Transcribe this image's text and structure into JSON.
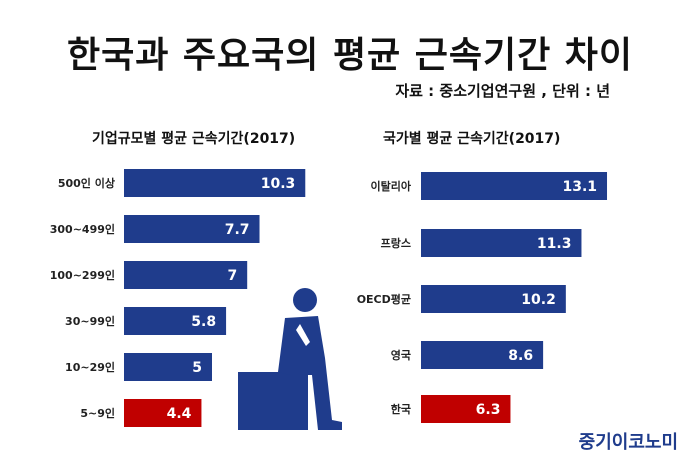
{
  "title": "한국과 주요국의 평균 근속기간 차이",
  "source": "자료 : 중소기업연구원 , 단위 : 년",
  "brand": "중기이코노미",
  "colors": {
    "bar": "#1f3c8c",
    "highlight": "#c00000",
    "label": "#ffffff"
  },
  "chart_data": [
    {
      "type": "bar",
      "orientation": "horizontal",
      "title": "기업규모별 평균 근속기간(2017)",
      "categories": [
        "500인 이상",
        "300~499인",
        "100~299인",
        "30~99인",
        "10~29인",
        "5~9인"
      ],
      "values": [
        10.3,
        7.7,
        7,
        5.8,
        5,
        4.4
      ],
      "labels": [
        "10.3",
        "7.7",
        "7",
        "5.8",
        "5",
        "4.4"
      ],
      "highlight": "5~9인"
    },
    {
      "type": "bar",
      "orientation": "horizontal",
      "title": "국가별 평균 근속기간(2017)",
      "categories": [
        "이탈리아",
        "프랑스",
        "OECD평균",
        "영국",
        "한국"
      ],
      "values": [
        13.1,
        11.3,
        10.2,
        8.6,
        6.3
      ],
      "labels": [
        "13.1",
        "11.3",
        "10.2",
        "8.6",
        "6.3"
      ],
      "highlight": "한국"
    }
  ]
}
